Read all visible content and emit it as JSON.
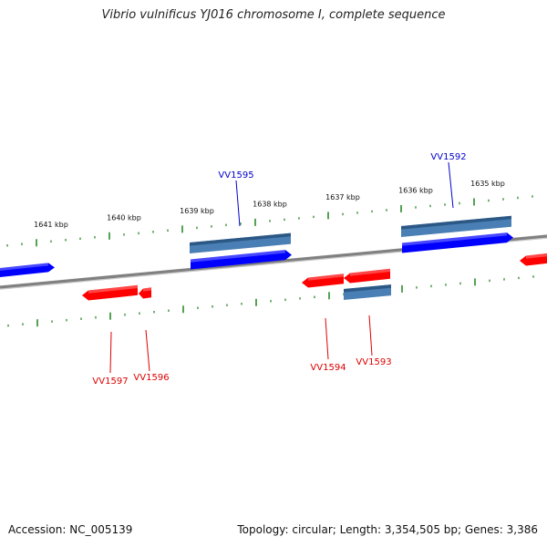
{
  "title": "Vibrio vulnificus YJ016 chromosome I, complete sequence",
  "footer": {
    "accession": "Accession: NC_005139",
    "summary": "Topology: circular; Length: 3,354,505 bp; Genes: 3,386"
  },
  "colors": {
    "forward_gene": "#0000ff",
    "reverse_gene": "#ff0000",
    "cds_feature": "#4a7fb5",
    "backbone": "#808080",
    "tick": "#2a8a2a",
    "forward_label": "#0000cc",
    "reverse_label": "#dd0000"
  },
  "scale": {
    "unit_labels": [
      "1641 kbp",
      "1640 kbp",
      "1639 kbp",
      "1638 kbp",
      "1637 kbp",
      "1636 kbp",
      "1635 kbp"
    ]
  },
  "genes": [
    {
      "label": "VV1595",
      "strand": "forward"
    },
    {
      "label": "VV1592",
      "strand": "forward"
    },
    {
      "label": "VV1597",
      "strand": "reverse"
    },
    {
      "label": "VV1596",
      "strand": "reverse"
    },
    {
      "label": "VV1594",
      "strand": "reverse"
    },
    {
      "label": "VV1593",
      "strand": "reverse"
    }
  ]
}
